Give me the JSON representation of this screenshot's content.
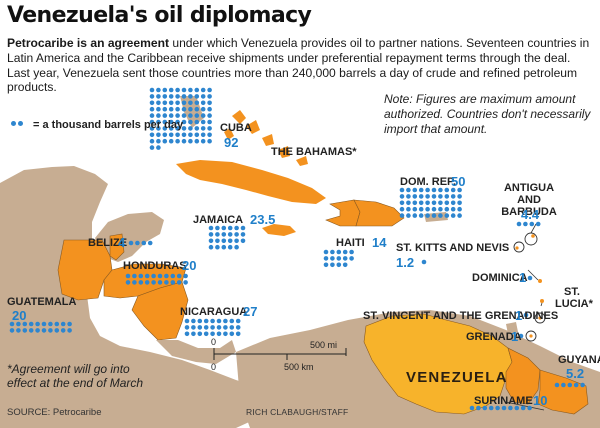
{
  "title": "Venezuela's oil diplomacy",
  "intro": {
    "lead": "Petrocaribe is an agreement",
    "body": " under which Venezuela provides oil to partner nations. Seventeen countries in Latin America and the Caribbean receive shipments under preferential repayment terms through the deal. Last year, Venezuela sent those countries more than 240,000 barrels a day of crude and refined petroleum products."
  },
  "note": "Note: Figures are maximum amount authorized. Countries don't necessarily import that amount.",
  "legend": {
    "label": "= a thousand barrels per day",
    "dot_color": "#2e86cf"
  },
  "countries": [
    {
      "id": "cuba",
      "name": "CUBA",
      "value": "92",
      "dots": 92
    },
    {
      "id": "bahamas",
      "name": "THE BAHAMAS*",
      "value": "",
      "dots": 0
    },
    {
      "id": "jamaica",
      "name": "JAMAICA",
      "value": "23.5",
      "dots": 23
    },
    {
      "id": "haiti",
      "name": "HAITI",
      "value": "14",
      "dots": 14
    },
    {
      "id": "domrep",
      "name": "DOM. REP.",
      "value": "50",
      "dots": 50
    },
    {
      "id": "antigua",
      "name": "ANTIGUA AND BARBUDA",
      "value": "4.4",
      "dots": 4
    },
    {
      "id": "stkitts",
      "name": "ST. KITTS AND NEVIS",
      "value": "1.2",
      "dots": 1
    },
    {
      "id": "dominica",
      "name": "DOMINICA",
      "value": "1",
      "dots": 1
    },
    {
      "id": "stlucia",
      "name": "ST. LUCIA*",
      "value": "",
      "dots": 0
    },
    {
      "id": "stvincent",
      "name": "ST. VINCENT AND THE GRENADINES",
      "value": "1",
      "dots": 1
    },
    {
      "id": "grenada",
      "name": "GRENADA",
      "value": "1",
      "dots": 1
    },
    {
      "id": "guyana",
      "name": "GUYANA",
      "value": "5.2",
      "dots": 5
    },
    {
      "id": "suriname",
      "name": "SURINAME",
      "value": "10",
      "dots": 10
    },
    {
      "id": "belize",
      "name": "BELIZE",
      "value": "4",
      "dots": 4
    },
    {
      "id": "honduras",
      "name": "HONDURAS",
      "value": "20",
      "dots": 20
    },
    {
      "id": "guatemala",
      "name": "GUATEMALA",
      "value": "20",
      "dots": 20
    },
    {
      "id": "nicaragua",
      "name": "NICARAGUA",
      "value": "27",
      "dots": 27
    }
  ],
  "venezuela_label": "VENEZUELA",
  "footnote": "*Agreement will go into effect at the end of March",
  "scale": {
    "zero": "0",
    "mi": "500 mi",
    "km": "500 km"
  },
  "source": "SOURCE: Petrocaribe",
  "credit": "RICH CLABAUGH/STAFF",
  "colors": {
    "sea": "#ffffff",
    "land": "#c7ad92",
    "member": "#f3921f",
    "venezuela": "#f7b32b",
    "dot": "#2e86cf",
    "text_value": "#1f7fc9"
  }
}
